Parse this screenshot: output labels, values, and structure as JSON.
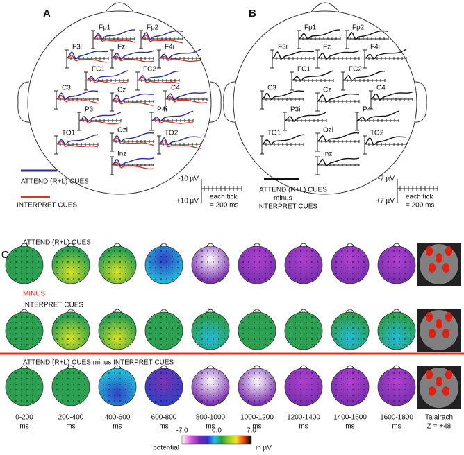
{
  "panel_a": {
    "label": "A",
    "electrodes": [
      "Fp1",
      "Fp2",
      "F3i",
      "Fz",
      "F4i",
      "FC1",
      "FC2",
      "C3",
      "Cz",
      "C4",
      "P3i",
      "P4i",
      "TO1",
      "Ozi",
      "TO2",
      "Inz"
    ],
    "legend": [
      "ATTEND (R+L) CUES",
      "INTERPRET CUES"
    ],
    "scale": {
      "top": "-10 µV",
      "bottom": "+10 µV",
      "tick_note": [
        "each tick",
        "= 200 ms"
      ]
    }
  },
  "panel_b": {
    "label": "B",
    "electrodes": [
      "Fp1",
      "Fp2",
      "F3i",
      "Fz",
      "F4i",
      "FC1",
      "FC2",
      "C3",
      "Cz",
      "C4",
      "P3i",
      "P4i",
      "TO1",
      "Ozi",
      "TO2",
      "Inz"
    ],
    "legend": [
      "ATTEND (R+L) CUES",
      "minus",
      "INTERPRET CUES"
    ],
    "scale": {
      "top": "-7 µV",
      "bottom": "+7 µV",
      "tick_note": [
        "each tick",
        "= 200 ms"
      ]
    }
  },
  "panel_c": {
    "label": "C",
    "rows": [
      "ATTEND (R+L) CUES",
      "INTERPRET CUES",
      "ATTEND (R+L) CUES minus INTERPRET CUES"
    ],
    "minus": "MINUS",
    "windows": [
      [
        "0-200",
        "ms"
      ],
      [
        "200-400",
        "ms"
      ],
      [
        "400-600",
        "ms"
      ],
      [
        "600-800",
        "ms"
      ],
      [
        "800-1000",
        "ms"
      ],
      [
        "1000-1200",
        "ms"
      ],
      [
        "1200-1400",
        "ms"
      ],
      [
        "1400-1600",
        "ms"
      ],
      [
        "1600-1800",
        "ms"
      ]
    ],
    "talairach": [
      "Talairach",
      "Z = +48"
    ],
    "colorbar": {
      "label": "potential",
      "ticks": [
        "-7.0",
        "0.0",
        "7.0"
      ],
      "unit": "in µV"
    }
  }
}
